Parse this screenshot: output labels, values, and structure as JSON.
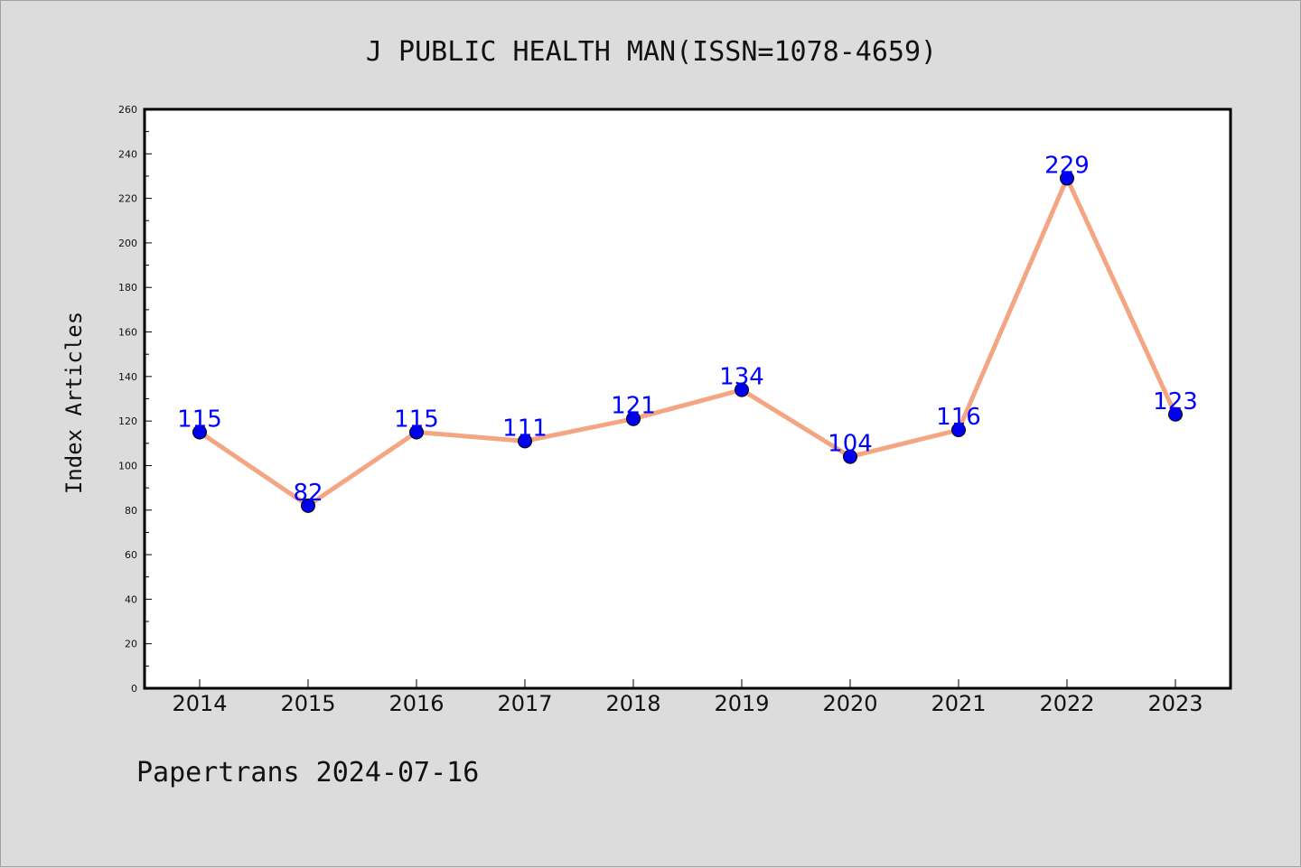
{
  "chart_data": {
    "type": "line",
    "title": "J PUBLIC HEALTH MAN(ISSN=1078-4659)",
    "xlabel": "",
    "ylabel": "Index Articles",
    "categories": [
      "2014",
      "2015",
      "2016",
      "2017",
      "2018",
      "2019",
      "2020",
      "2021",
      "2022",
      "2023"
    ],
    "values": [
      115,
      82,
      115,
      111,
      121,
      134,
      104,
      116,
      229,
      123
    ],
    "ylim": [
      0,
      260
    ],
    "yticks": [
      0,
      20,
      40,
      60,
      80,
      100,
      120,
      140,
      160,
      180,
      200,
      220,
      240,
      260
    ],
    "grid": false,
    "legend": "none",
    "colors": {
      "line": "#f4a582",
      "marker": "#0000ee",
      "data_label": "#0000ff",
      "background": "#dcdcdc",
      "plot_area": "#ffffff"
    }
  },
  "footer": "Papertrans 2024-07-16"
}
